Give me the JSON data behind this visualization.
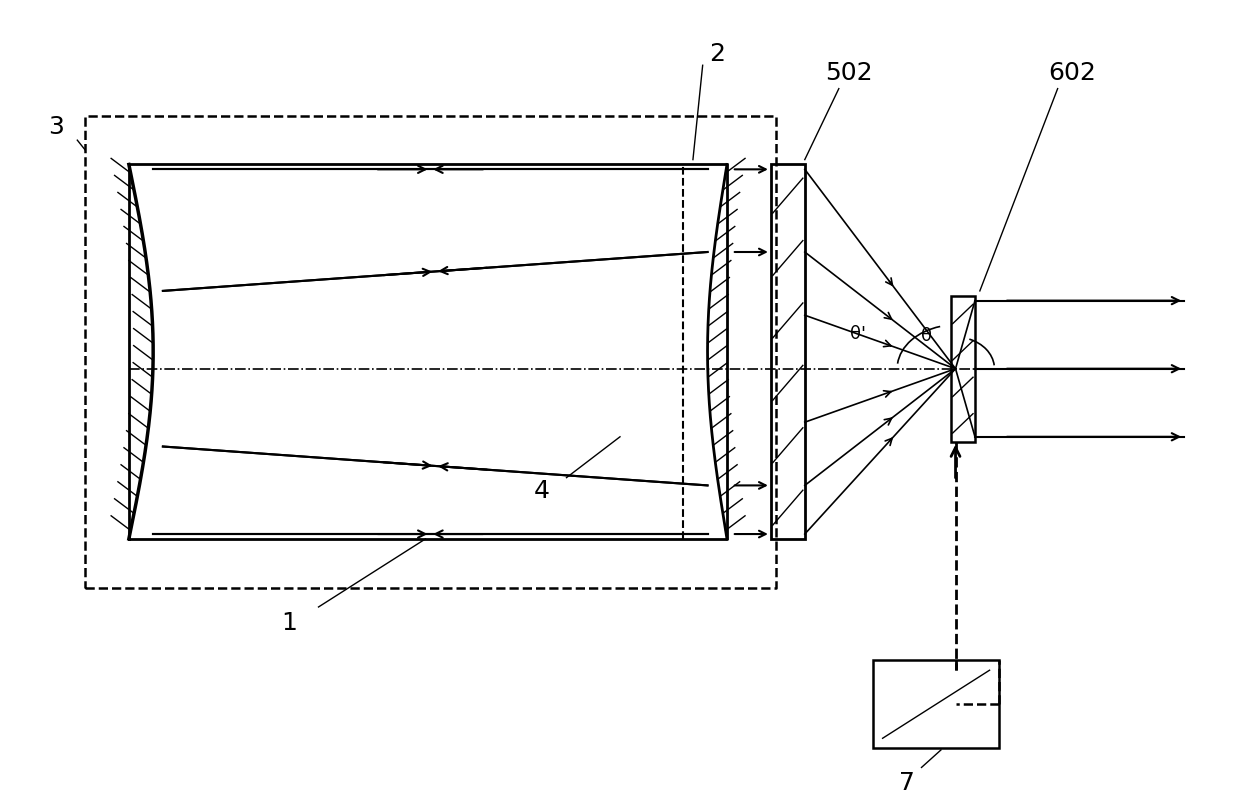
{
  "bg_color": "#ffffff",
  "line_color": "#000000",
  "fig_width": 12.4,
  "fig_height": 8.03,
  "dpi": 100
}
